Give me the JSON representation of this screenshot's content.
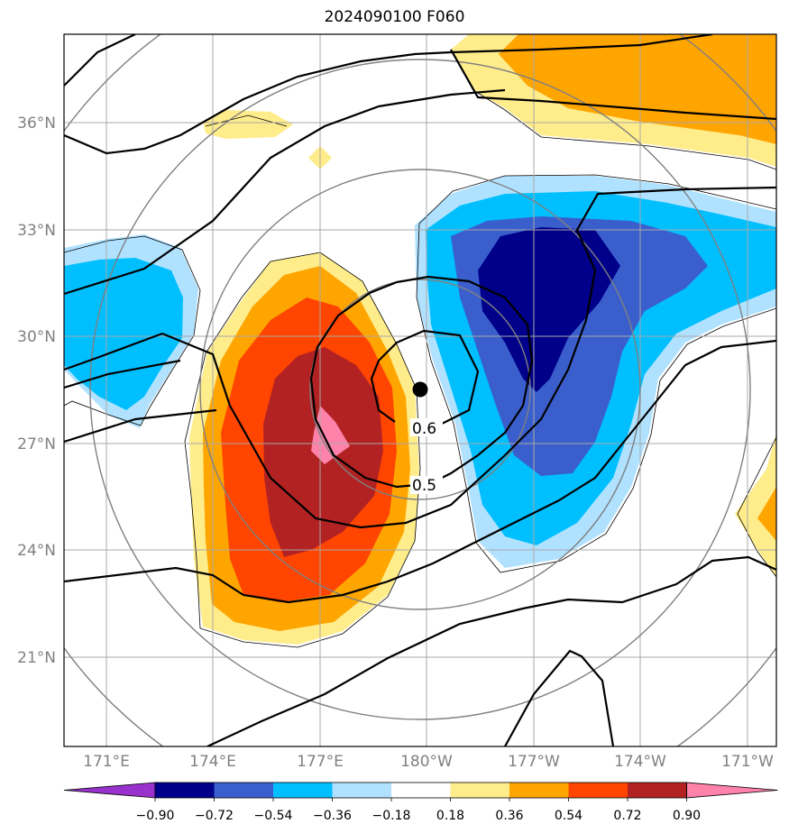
{
  "title": "2024090100 F060",
  "map": {
    "lat_labels": [
      "36°N",
      "33°N",
      "30°N",
      "27°N",
      "24°N",
      "21°N"
    ],
    "lon_labels": [
      "171°E",
      "174°E",
      "177°E",
      "180°W",
      "177°W",
      "174°W",
      "171°W"
    ],
    "lon_range": [
      "170°E",
      "170°W"
    ],
    "lat_range": [
      "17.8°N",
      "37.8°N"
    ],
    "gridlines": true,
    "contour_labels": [
      "0.6",
      "0.5"
    ],
    "center_marker": {
      "lon": "179.8°W",
      "lat": "28.5°N"
    }
  },
  "colorbar": {
    "levels": [
      "−0.90",
      "−0.72",
      "−0.54",
      "−0.36",
      "−0.18",
      "0.18",
      "0.36",
      "0.54",
      "0.72",
      "0.90"
    ],
    "colors": [
      "#9932CC",
      "#00008B",
      "#3A5FCD",
      "#00BFFF",
      "#B0E2FF",
      "#FFFFFF",
      "#FFEC8B",
      "#FFA500",
      "#FF4500",
      "#B22222",
      "#FF82AB"
    ],
    "extend": "both"
  }
}
